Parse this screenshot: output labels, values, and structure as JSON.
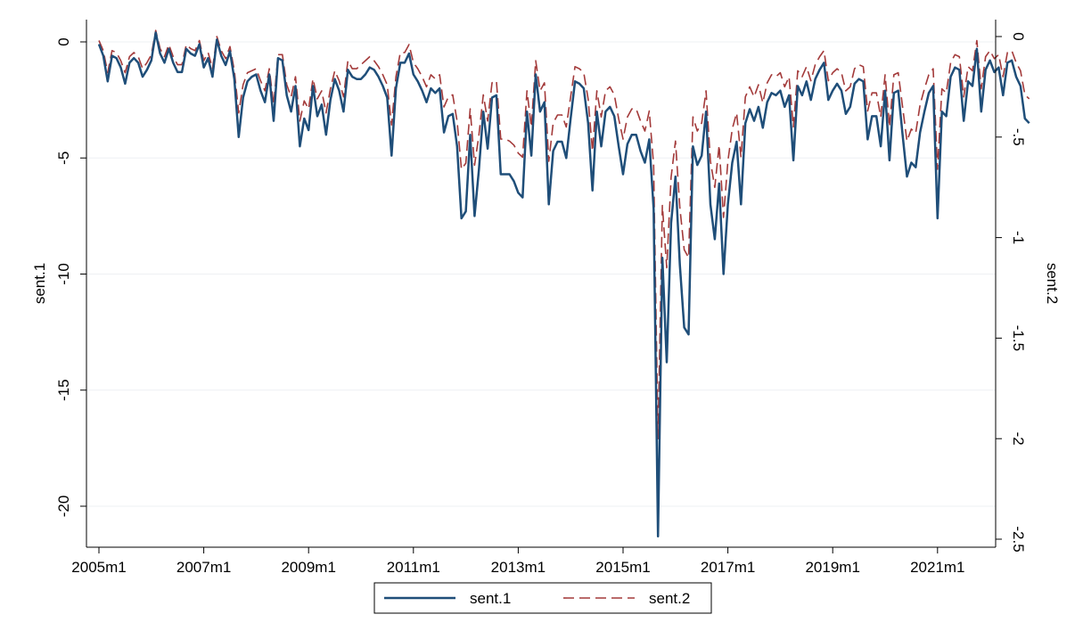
{
  "chart_data": {
    "type": "line",
    "x_start": "2005m1",
    "x_frequency": "monthly",
    "x_count": 204,
    "x_ticks": [
      "2005m1",
      "2007m1",
      "2009m1",
      "2011m1",
      "2013m1",
      "2015m1",
      "2017m1",
      "2019m1",
      "2021m1"
    ],
    "y_left": {
      "label": "sent.1",
      "ticks": [
        0,
        -5,
        -10,
        -15,
        -20
      ],
      "tick_labels": [
        "0",
        "-5",
        "-10",
        "-15",
        "-20"
      ],
      "range": [
        -21.5,
        0.9
      ]
    },
    "y_right": {
      "label": "sent.2",
      "ticks": [
        0,
        -0.5,
        -1,
        -1.5,
        -2,
        -2.5
      ],
      "tick_labels": [
        "0",
        "-.5",
        "-1",
        "-1.5",
        "-2",
        "-2.5"
      ],
      "range": [
        -2.5,
        0.06
      ]
    },
    "grid": true,
    "legend": "bottom",
    "series": [
      {
        "name": "sent.1",
        "axis": "left",
        "color": "#1f4e79",
        "style": "solid",
        "values": [
          -0.1,
          -0.6,
          -1.7,
          -0.6,
          -0.7,
          -1.1,
          -1.8,
          -0.9,
          -0.7,
          -0.9,
          -1.5,
          -1.2,
          -0.8,
          0.4,
          -0.5,
          -0.9,
          -0.3,
          -0.9,
          -1.3,
          -1.3,
          -0.3,
          -0.5,
          -0.6,
          -0.1,
          -1.1,
          -0.7,
          -1.5,
          0.1,
          -0.6,
          -1.0,
          -0.4,
          -1.6,
          -4.1,
          -2.4,
          -1.7,
          -1.5,
          -1.4,
          -2.1,
          -2.6,
          -1.4,
          -3.4,
          -0.7,
          -0.8,
          -2.3,
          -3.0,
          -1.9,
          -4.5,
          -3.3,
          -3.8,
          -1.9,
          -3.2,
          -2.7,
          -4.0,
          -2.5,
          -1.6,
          -2.1,
          -3.0,
          -1.2,
          -1.5,
          -1.6,
          -1.6,
          -1.4,
          -1.1,
          -1.2,
          -1.5,
          -1.9,
          -2.4,
          -4.9,
          -2.0,
          -0.9,
          -0.9,
          -0.5,
          -1.4,
          -1.7,
          -2.1,
          -2.6,
          -2.0,
          -2.2,
          -2.0,
          -3.9,
          -3.2,
          -3.1,
          -4.5,
          -7.6,
          -7.3,
          -4.0,
          -7.5,
          -5.5,
          -3.0,
          -4.6,
          -2.4,
          -2.3,
          -5.7,
          -5.7,
          -5.7,
          -6.0,
          -6.5,
          -6.7,
          -3.0,
          -4.9,
          -1.4,
          -3.0,
          -2.6,
          -7.0,
          -4.7,
          -4.3,
          -4.3,
          -5.0,
          -3.3,
          -1.7,
          -1.8,
          -2.0,
          -3.5,
          -6.4,
          -3.0,
          -4.5,
          -3.0,
          -2.8,
          -3.2,
          -4.5,
          -5.7,
          -4.4,
          -4.0,
          -4.0,
          -4.7,
          -5.2,
          -4.2,
          -7.2,
          -21.3,
          -9.3,
          -13.8,
          -7.8,
          -5.8,
          -9.6,
          -12.3,
          -12.6,
          -4.5,
          -5.3,
          -4.9,
          -3.0,
          -7.0,
          -8.5,
          -6.1,
          -10.0,
          -7.0,
          -5.2,
          -4.3,
          -7.0,
          -3.5,
          -2.9,
          -3.4,
          -2.8,
          -3.7,
          -2.6,
          -2.2,
          -2.3,
          -2.1,
          -2.8,
          -2.3,
          -5.1,
          -1.9,
          -2.3,
          -1.7,
          -2.5,
          -1.6,
          -1.2,
          -0.9,
          -2.5,
          -2.1,
          -1.8,
          -2.1,
          -3.1,
          -2.8,
          -1.8,
          -1.6,
          -1.7,
          -4.2,
          -3.2,
          -3.2,
          -4.5,
          -2.1,
          -5.1,
          -2.2,
          -2.1,
          -4.0,
          -5.8,
          -5.2,
          -5.4,
          -3.9,
          -3.0,
          -2.2,
          -1.9,
          -7.6,
          -3.0,
          -3.2,
          -1.5,
          -1.1,
          -1.2,
          -3.4,
          -1.7,
          -1.9,
          -0.3,
          -3.0,
          -1.2,
          -0.8,
          -1.3,
          -1.1,
          -2.3,
          -0.9,
          -0.8,
          -1.5,
          -1.9,
          -3.3,
          -3.5
        ]
      },
      {
        "name": "sent.2",
        "axis": "right",
        "color": "#a33a3a",
        "style": "dashed",
        "values": [
          -0.02,
          -0.07,
          -0.18,
          -0.07,
          -0.08,
          -0.12,
          -0.18,
          -0.1,
          -0.08,
          -0.1,
          -0.16,
          -0.13,
          -0.09,
          0.03,
          -0.06,
          -0.1,
          -0.04,
          -0.1,
          -0.14,
          -0.14,
          -0.04,
          -0.06,
          -0.07,
          -0.02,
          -0.12,
          -0.08,
          -0.16,
          0.0,
          -0.07,
          -0.11,
          -0.05,
          -0.17,
          -0.38,
          -0.24,
          -0.18,
          -0.17,
          -0.16,
          -0.22,
          -0.27,
          -0.16,
          -0.34,
          -0.09,
          -0.09,
          -0.24,
          -0.3,
          -0.2,
          -0.42,
          -0.32,
          -0.36,
          -0.21,
          -0.31,
          -0.27,
          -0.38,
          -0.26,
          -0.17,
          -0.22,
          -0.3,
          -0.12,
          -0.16,
          -0.16,
          -0.14,
          -0.12,
          -0.1,
          -0.12,
          -0.15,
          -0.19,
          -0.24,
          -0.44,
          -0.2,
          -0.08,
          -0.08,
          -0.04,
          -0.13,
          -0.16,
          -0.2,
          -0.25,
          -0.19,
          -0.21,
          -0.19,
          -0.35,
          -0.3,
          -0.29,
          -0.42,
          -0.66,
          -0.63,
          -0.36,
          -0.64,
          -0.49,
          -0.29,
          -0.42,
          -0.23,
          -0.22,
          -0.51,
          -0.51,
          -0.52,
          -0.54,
          -0.58,
          -0.6,
          -0.27,
          -0.45,
          -0.12,
          -0.27,
          -0.23,
          -0.62,
          -0.43,
          -0.39,
          -0.39,
          -0.45,
          -0.3,
          -0.15,
          -0.16,
          -0.18,
          -0.31,
          -0.57,
          -0.27,
          -0.4,
          -0.27,
          -0.25,
          -0.29,
          -0.41,
          -0.51,
          -0.4,
          -0.36,
          -0.36,
          -0.42,
          -0.47,
          -0.37,
          -0.64,
          -2.0,
          -0.84,
          -1.15,
          -0.7,
          -0.52,
          -0.85,
          -1.06,
          -1.1,
          -0.4,
          -0.47,
          -0.43,
          -0.27,
          -0.62,
          -0.75,
          -0.54,
          -0.9,
          -0.62,
          -0.46,
          -0.38,
          -0.6,
          -0.3,
          -0.25,
          -0.3,
          -0.24,
          -0.33,
          -0.23,
          -0.19,
          -0.2,
          -0.18,
          -0.25,
          -0.2,
          -0.45,
          -0.17,
          -0.2,
          -0.15,
          -0.22,
          -0.14,
          -0.1,
          -0.07,
          -0.22,
          -0.18,
          -0.16,
          -0.18,
          -0.27,
          -0.25,
          -0.16,
          -0.14,
          -0.15,
          -0.37,
          -0.28,
          -0.28,
          -0.4,
          -0.19,
          -0.45,
          -0.19,
          -0.18,
          -0.35,
          -0.52,
          -0.46,
          -0.48,
          -0.34,
          -0.26,
          -0.19,
          -0.16,
          -0.66,
          -0.26,
          -0.28,
          -0.13,
          -0.09,
          -0.1,
          -0.3,
          -0.15,
          -0.17,
          -0.02,
          -0.26,
          -0.1,
          -0.07,
          -0.11,
          -0.09,
          -0.2,
          -0.08,
          -0.07,
          -0.13,
          -0.17,
          -0.29,
          -0.31
        ]
      }
    ]
  }
}
